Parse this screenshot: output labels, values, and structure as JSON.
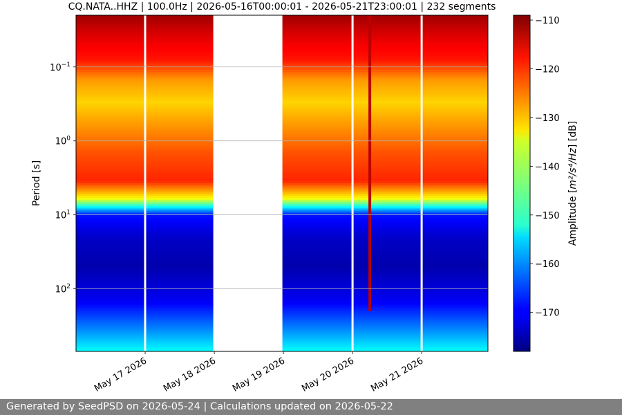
{
  "chart_data": {
    "type": "heatmap",
    "title": "CQ.NATA..HHZ | 100.0Hz | 2026-05-16T00:00:01 - 2026-05-21T23:00:01 | 232 segments",
    "ylabel": "Period [s]",
    "xlabel": "",
    "y_scale": "log",
    "y_inverted": true,
    "ylim": [
      0.02,
      700
    ],
    "y_ticks": [
      {
        "value": 0.1,
        "base": "10",
        "exp": "−1"
      },
      {
        "value": 1,
        "base": "10",
        "exp": "0"
      },
      {
        "value": 10,
        "base": "10",
        "exp": "1"
      },
      {
        "value": 100,
        "base": "10",
        "exp": "2"
      }
    ],
    "xlim": [
      "2026-05-16T00:00:01",
      "2026-05-21T23:00:01"
    ],
    "x_ticks": [
      {
        "date": "2026-05-17",
        "label": "May 17 2026"
      },
      {
        "date": "2026-05-18",
        "label": "May 18 2026"
      },
      {
        "date": "2026-05-19",
        "label": "May 19 2026"
      },
      {
        "date": "2026-05-20",
        "label": "May 20 2026"
      },
      {
        "date": "2026-05-21",
        "label": "May 21 2026"
      }
    ],
    "grid": true,
    "colormap": "jet",
    "colorbar": {
      "label_prefix": "Amplitude [",
      "label_unit_html": "m²/s⁴/Hz",
      "label_suffix": "] [dB]",
      "range": [
        -178,
        -109
      ],
      "ticks": [
        -110,
        -120,
        -130,
        -140,
        -150,
        -160,
        -170
      ],
      "tick_labels": [
        "−110",
        "−120",
        "−130",
        "−140",
        "−150",
        "−160",
        "−170"
      ]
    },
    "data_gaps": [
      [
        "2026-05-17T00:00:00",
        "2026-05-17T00:30:00"
      ],
      [
        "2026-05-18T00:00:00",
        "2026-05-19T00:00:00"
      ],
      [
        "2026-05-20T00:00:00",
        "2026-05-20T00:30:00"
      ],
      [
        "2026-05-21T00:00:00",
        "2026-05-21T00:30:00"
      ]
    ],
    "amplitude_profile_db": {
      "period_s": [
        0.02,
        0.03,
        0.05,
        0.08,
        0.15,
        0.3,
        0.6,
        1.5,
        3.5,
        6,
        10,
        20,
        50,
        150,
        300,
        700
      ],
      "amplitude_db": [
        -111,
        -114,
        -117,
        -119,
        -128,
        -132,
        -128,
        -123,
        -120,
        -135,
        -168,
        -173,
        -175,
        -170,
        -162,
        -152
      ]
    },
    "transient_events": [
      {
        "time": "2026-05-20T06:00:00",
        "period_range_s": [
          0.02,
          200
        ],
        "amplitude_db": -113
      }
    ]
  },
  "footer_text": "Generated by SeedPSD on 2026-05-24 | Calculations updated on 2026-05-22"
}
